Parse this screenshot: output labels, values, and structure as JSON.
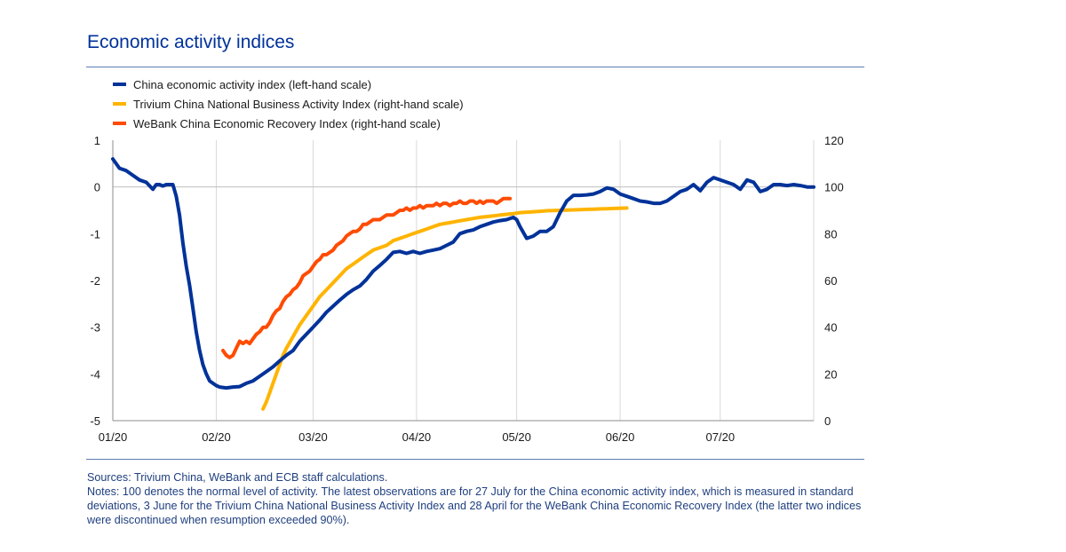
{
  "title": "Economic activity indices",
  "sources": "Sources: Trivium China, WeBank and ECB staff calculations.",
  "notes": "Notes: 100 denotes the normal level of activity. The latest observations are for 27 July for the China economic activity index, which is measured in standard deviations, 3 June for the Trivium China National Business Activity Index and 28 April for the WeBank China Economic Recovery Index (the latter two indices were discontinued when resumption exceeded 90%).",
  "chart_data": {
    "type": "line",
    "x_axis": {
      "unit": "days since 1 Jan 2020",
      "range": [
        0,
        210
      ],
      "ticks": [
        {
          "value": 0,
          "label": "01/20"
        },
        {
          "value": 31,
          "label": "02/20"
        },
        {
          "value": 60,
          "label": "03/20"
        },
        {
          "value": 91,
          "label": "04/20"
        },
        {
          "value": 121,
          "label": "05/20"
        },
        {
          "value": 152,
          "label": "06/20"
        },
        {
          "value": 182,
          "label": "07/20"
        }
      ]
    },
    "y_left": {
      "range": [
        -5,
        1
      ],
      "ticks": [
        "1",
        "0",
        "-1",
        "-2",
        "-3",
        "-4",
        "-5"
      ],
      "tick_values": [
        1,
        0,
        -1,
        -2,
        -3,
        -4,
        -5
      ]
    },
    "y_right": {
      "range": [
        0,
        120
      ],
      "ticks": [
        "120",
        "100",
        "80",
        "60",
        "40",
        "20",
        "0"
      ],
      "tick_values": [
        120,
        100,
        80,
        60,
        40,
        20,
        0
      ]
    },
    "grid": "vertical",
    "legend_position": "top-left",
    "series": [
      {
        "name": "China economic activity index (left-hand scale)",
        "axis": "left",
        "color": "#003299",
        "x": [
          0,
          2,
          4,
          6,
          8,
          10,
          12,
          13,
          14,
          15,
          16,
          18,
          19,
          20,
          21,
          22,
          23,
          24,
          25,
          26,
          27,
          28,
          29,
          30,
          31,
          32,
          34,
          36,
          38,
          40,
          42,
          44,
          46,
          48,
          50,
          52,
          54,
          56,
          58,
          60,
          62,
          64,
          66,
          68,
          70,
          72,
          74,
          76,
          78,
          80,
          82,
          84,
          86,
          88,
          90,
          92,
          94,
          96,
          98,
          100,
          102,
          104,
          106,
          108,
          110,
          112,
          114,
          116,
          118,
          120,
          121,
          122,
          124,
          126,
          128,
          130,
          132,
          134,
          136,
          138,
          140,
          142,
          144,
          146,
          148,
          150,
          152,
          154,
          156,
          158,
          160,
          162,
          164,
          166,
          168,
          170,
          172,
          174,
          176,
          178,
          180,
          182,
          184,
          186,
          188,
          190,
          192,
          194,
          196,
          198,
          200,
          202,
          204,
          206,
          208,
          210
        ],
        "y": [
          0.6,
          0.4,
          0.35,
          0.25,
          0.15,
          0.1,
          -0.05,
          0.05,
          0.05,
          0.02,
          0.05,
          0.05,
          -0.2,
          -0.6,
          -1.2,
          -1.7,
          -2.1,
          -2.6,
          -3.1,
          -3.5,
          -3.8,
          -4.0,
          -4.15,
          -4.2,
          -4.25,
          -4.28,
          -4.3,
          -4.28,
          -4.27,
          -4.2,
          -4.15,
          -4.05,
          -3.95,
          -3.85,
          -3.72,
          -3.6,
          -3.5,
          -3.3,
          -3.15,
          -3.0,
          -2.85,
          -2.68,
          -2.55,
          -2.42,
          -2.3,
          -2.2,
          -2.12,
          -1.98,
          -1.8,
          -1.68,
          -1.55,
          -1.4,
          -1.38,
          -1.42,
          -1.38,
          -1.42,
          -1.38,
          -1.35,
          -1.32,
          -1.25,
          -1.18,
          -1.0,
          -0.95,
          -0.92,
          -0.85,
          -0.8,
          -0.75,
          -0.72,
          -0.7,
          -0.65,
          -0.7,
          -0.85,
          -1.1,
          -1.05,
          -0.95,
          -0.95,
          -0.85,
          -0.55,
          -0.3,
          -0.18,
          -0.18,
          -0.17,
          -0.15,
          -0.1,
          -0.02,
          -0.05,
          -0.15,
          -0.2,
          -0.25,
          -0.3,
          -0.32,
          -0.35,
          -0.35,
          -0.3,
          -0.2,
          -0.1,
          -0.05,
          0.05,
          -0.08,
          0.1,
          0.2,
          0.15,
          0.1,
          0.05,
          -0.05,
          0.15,
          0.1,
          -0.1,
          -0.05,
          0.05,
          0.05,
          0.03,
          0.05,
          0.03,
          0.0,
          0.0
        ]
      },
      {
        "name": "Trivium China National Business Activity Index (right-hand scale)",
        "axis": "right",
        "color": "#ffb400",
        "x": [
          45,
          46,
          47,
          48,
          49,
          50,
          51,
          52,
          54,
          56,
          58,
          60,
          62,
          64,
          66,
          68,
          70,
          72,
          74,
          76,
          78,
          80,
          82,
          84,
          86,
          88,
          90,
          92,
          94,
          96,
          98,
          100,
          102,
          104,
          106,
          108,
          110,
          112,
          114,
          116,
          118,
          120,
          122,
          124,
          126,
          128,
          130,
          132,
          134,
          136,
          138,
          140,
          142,
          144,
          146,
          148,
          150,
          152,
          154
        ],
        "y": [
          5,
          8,
          12,
          16,
          20,
          24,
          28,
          31,
          36,
          41,
          45,
          49,
          53,
          56,
          59,
          62,
          65,
          67,
          69,
          71,
          73,
          74,
          75,
          77,
          78,
          79,
          80,
          81,
          82,
          83,
          84,
          84.5,
          85,
          85.5,
          86,
          86.5,
          87,
          87.3,
          87.6,
          88,
          88.3,
          88.6,
          89,
          89.2,
          89.4,
          89.6,
          89.8,
          89.9,
          90,
          90.1,
          90.2,
          90.3,
          90.4,
          90.5,
          90.6,
          90.7,
          90.8,
          90.9,
          91
        ]
      },
      {
        "name": "WeBank China Economic Recovery Index (right-hand scale)",
        "axis": "right",
        "color": "#ff4b00",
        "x": [
          33,
          34,
          35,
          36,
          37,
          38,
          39,
          40,
          41,
          42,
          43,
          44,
          45,
          46,
          47,
          48,
          49,
          50,
          51,
          52,
          53,
          54,
          55,
          56,
          57,
          58,
          59,
          60,
          61,
          62,
          63,
          64,
          65,
          66,
          67,
          68,
          69,
          70,
          71,
          72,
          73,
          74,
          75,
          76,
          77,
          78,
          79,
          80,
          81,
          82,
          83,
          84,
          85,
          86,
          87,
          88,
          89,
          90,
          91,
          92,
          93,
          94,
          95,
          96,
          97,
          98,
          99,
          100,
          101,
          102,
          103,
          104,
          105,
          106,
          107,
          108,
          109,
          110,
          111,
          112,
          113,
          114,
          115,
          116,
          117,
          118,
          119
        ],
        "y": [
          30,
          28,
          27,
          28,
          31,
          34,
          33,
          34,
          33,
          35,
          37,
          38,
          40,
          40,
          42,
          45,
          47,
          48,
          51,
          53,
          54,
          56,
          57,
          59,
          62,
          63,
          64,
          66,
          68,
          69,
          71,
          71,
          72,
          73,
          75,
          76,
          77,
          79,
          80,
          81,
          81,
          82,
          84,
          84,
          85,
          86,
          86,
          86,
          87,
          88,
          88,
          88,
          89,
          90,
          90,
          91,
          90,
          91,
          91,
          92,
          91,
          92,
          92,
          92,
          93,
          92,
          93,
          93,
          92,
          93,
          93,
          94,
          93,
          93,
          94,
          94,
          93,
          94,
          93,
          94,
          94,
          94,
          93,
          94,
          95,
          95,
          95
        ]
      }
    ]
  }
}
